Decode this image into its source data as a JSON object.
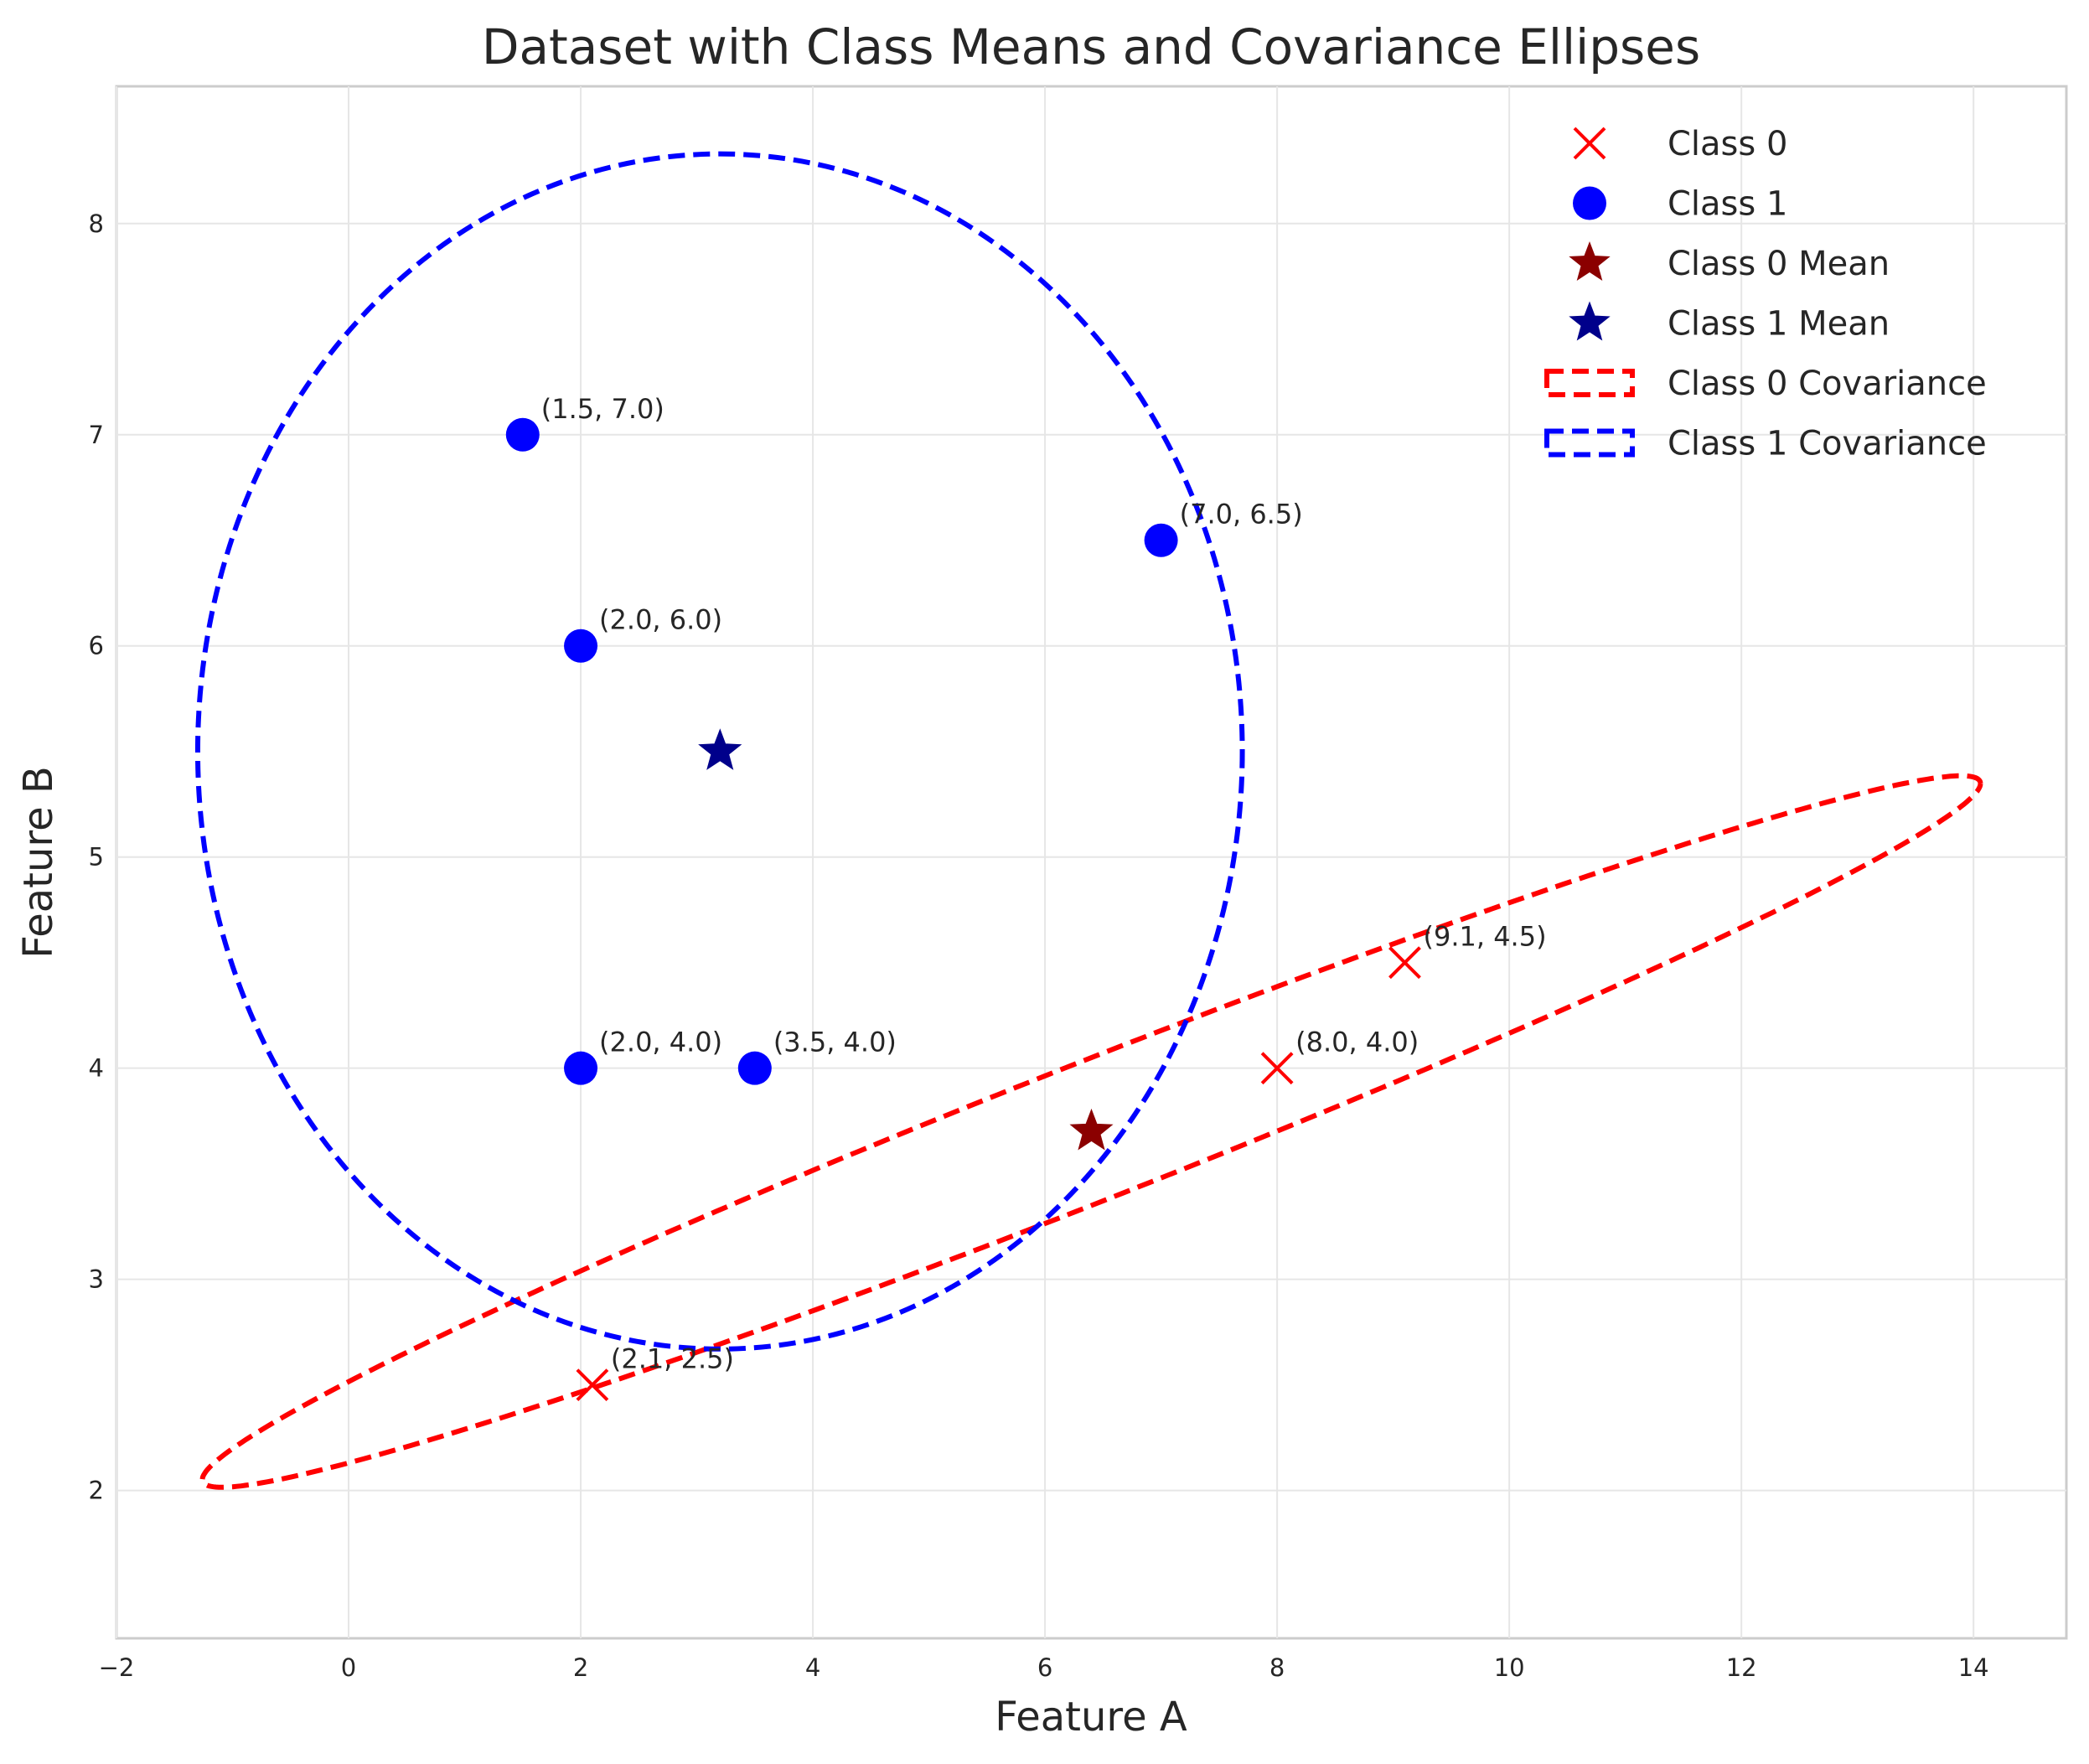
{
  "chart_data": {
    "type": "scatter",
    "title": "Dataset with Class Means and Covariance Ellipses",
    "xlabel": "Feature A",
    "ylabel": "Feature B",
    "xlim": [
      -2,
      14.8
    ],
    "ylim": [
      1.3,
      8.65
    ],
    "xticks": [
      -2,
      0,
      2,
      4,
      6,
      8,
      10,
      12,
      14
    ],
    "yticks": [
      2,
      3,
      4,
      5,
      6,
      7,
      8
    ],
    "grid": true,
    "legend_position": "top-right",
    "series": [
      {
        "name": "Class 0",
        "marker": "x",
        "color": "#ff0000",
        "points": [
          {
            "x": 2.1,
            "y": 2.5,
            "label": "(2.1, 2.5)"
          },
          {
            "x": 8.0,
            "y": 4.0,
            "label": "(8.0, 4.0)"
          },
          {
            "x": 9.1,
            "y": 4.5,
            "label": "(9.1, 4.5)"
          }
        ]
      },
      {
        "name": "Class 1",
        "marker": "circle",
        "color": "#0000ff",
        "points": [
          {
            "x": 1.5,
            "y": 7.0,
            "label": "(1.5, 7.0)"
          },
          {
            "x": 7.0,
            "y": 6.5,
            "label": "(7.0, 6.5)"
          },
          {
            "x": 2.0,
            "y": 6.0,
            "label": "(2.0, 6.0)"
          },
          {
            "x": 2.0,
            "y": 4.0,
            "label": "(2.0, 4.0)"
          },
          {
            "x": 3.5,
            "y": 4.0,
            "label": "(3.5, 4.0)"
          }
        ]
      }
    ],
    "means": [
      {
        "name": "Class 0 Mean",
        "x": 6.4,
        "y": 3.7,
        "color": "#8b0000"
      },
      {
        "name": "Class 1 Mean",
        "x": 3.2,
        "y": 5.5,
        "color": "#00008b"
      }
    ],
    "covariance_ellipses": [
      {
        "name": "Class 0 Covariance",
        "color": "#ff0000",
        "center_x": 6.4,
        "center_y": 3.7,
        "half_width_x": 7.66,
        "half_height_y": 2.06,
        "rotation_factor": 0.8,
        "half_minor": 0.35
      },
      {
        "name": "Class 1 Covariance",
        "color": "#0000ff",
        "center_x": 3.2,
        "center_y": 5.5,
        "semi_axis_x": 4.5,
        "semi_axis_y": 2.83
      }
    ],
    "legend": [
      {
        "label": "Class 0",
        "symbol": "x",
        "color": "#ff0000"
      },
      {
        "label": "Class 1",
        "symbol": "circle",
        "color": "#0000ff"
      },
      {
        "label": "Class 0 Mean",
        "symbol": "star",
        "color": "#8b0000"
      },
      {
        "label": "Class 1 Mean",
        "symbol": "star",
        "color": "#00008b"
      },
      {
        "label": "Class 0 Covariance",
        "symbol": "dashed-rect",
        "color": "#ff0000"
      },
      {
        "label": "Class 1 Covariance",
        "symbol": "dashed-rect",
        "color": "#0000ff"
      }
    ]
  }
}
